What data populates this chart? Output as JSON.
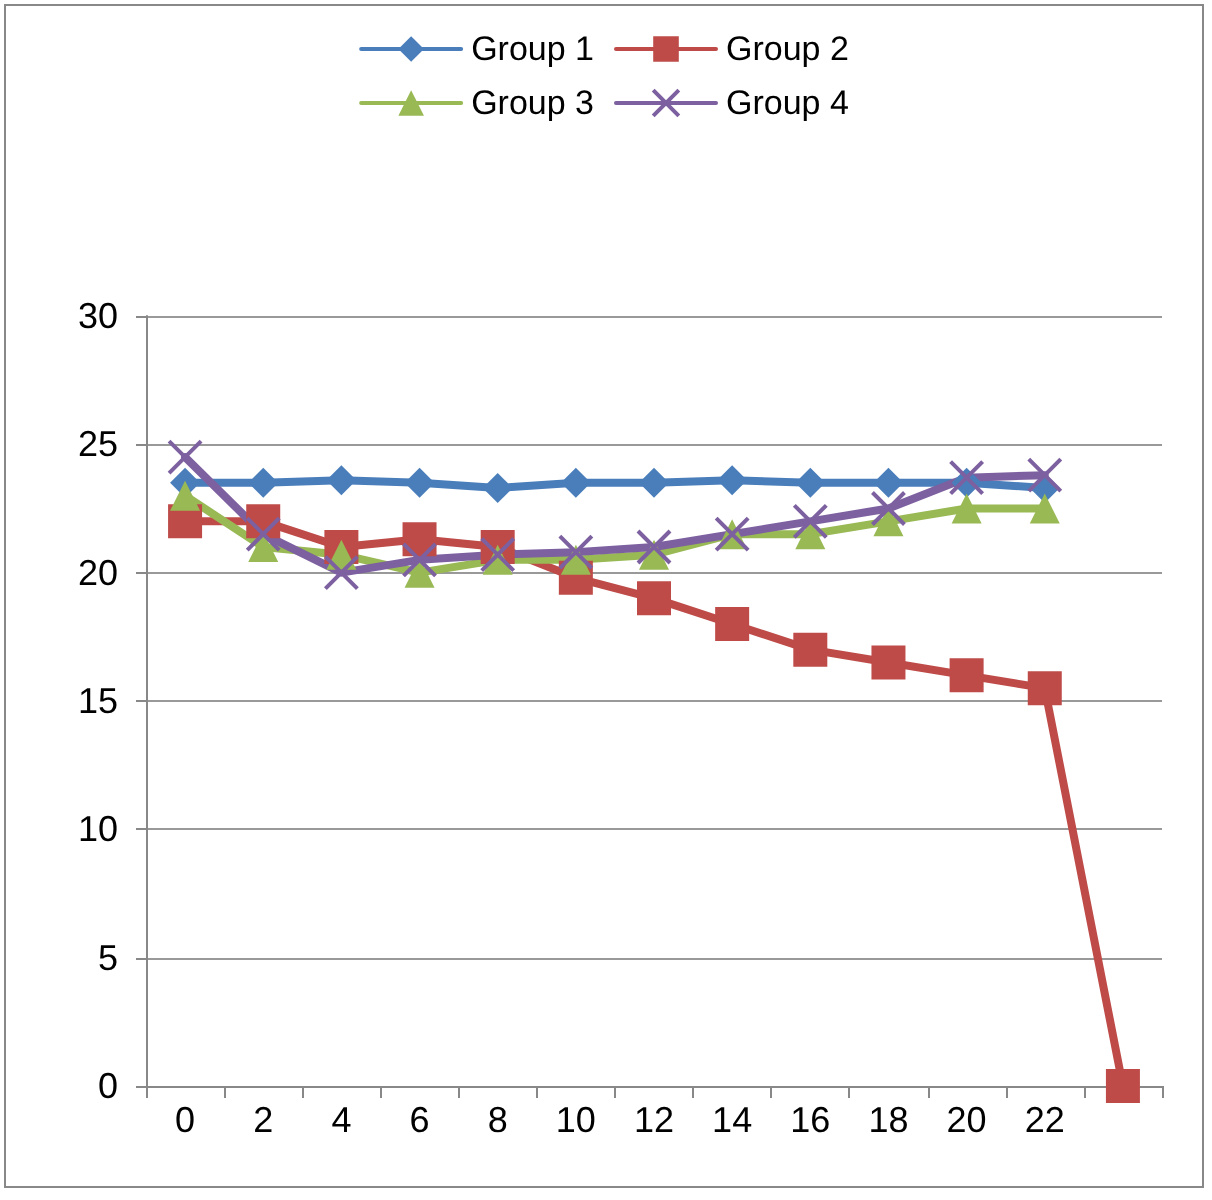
{
  "chart_data": {
    "type": "line",
    "categories": [
      "0",
      "2",
      "4",
      "6",
      "8",
      "10",
      "12",
      "14",
      "16",
      "18",
      "20",
      "22",
      null
    ],
    "series": [
      {
        "name": "Group 1",
        "color": "#4a7ebb",
        "marker": "diamond",
        "values": [
          23.5,
          23.5,
          23.6,
          23.5,
          23.3,
          23.5,
          23.5,
          23.6,
          23.5,
          23.5,
          23.5,
          23.3,
          null
        ]
      },
      {
        "name": "Group 2",
        "color": "#be4b48",
        "marker": "square",
        "values": [
          22,
          22,
          21,
          21.3,
          21,
          19.8,
          19,
          18,
          17,
          16.5,
          16,
          15.5,
          0
        ]
      },
      {
        "name": "Group 3",
        "color": "#98b954",
        "marker": "triangle",
        "values": [
          23,
          21,
          20.7,
          20,
          20.5,
          20.5,
          20.7,
          21.5,
          21.5,
          22,
          22.5,
          22.5,
          null
        ]
      },
      {
        "name": "Group 4",
        "color": "#7d60a0",
        "marker": "cross",
        "values": [
          24.5,
          21.5,
          20,
          20.5,
          20.7,
          20.8,
          21,
          21.5,
          22,
          22.5,
          23.7,
          23.8,
          null
        ]
      }
    ],
    "ylim": [
      0,
      30
    ],
    "yticks": [
      0,
      5,
      10,
      15,
      20,
      25,
      30
    ],
    "grid": "y",
    "legend": "top"
  }
}
